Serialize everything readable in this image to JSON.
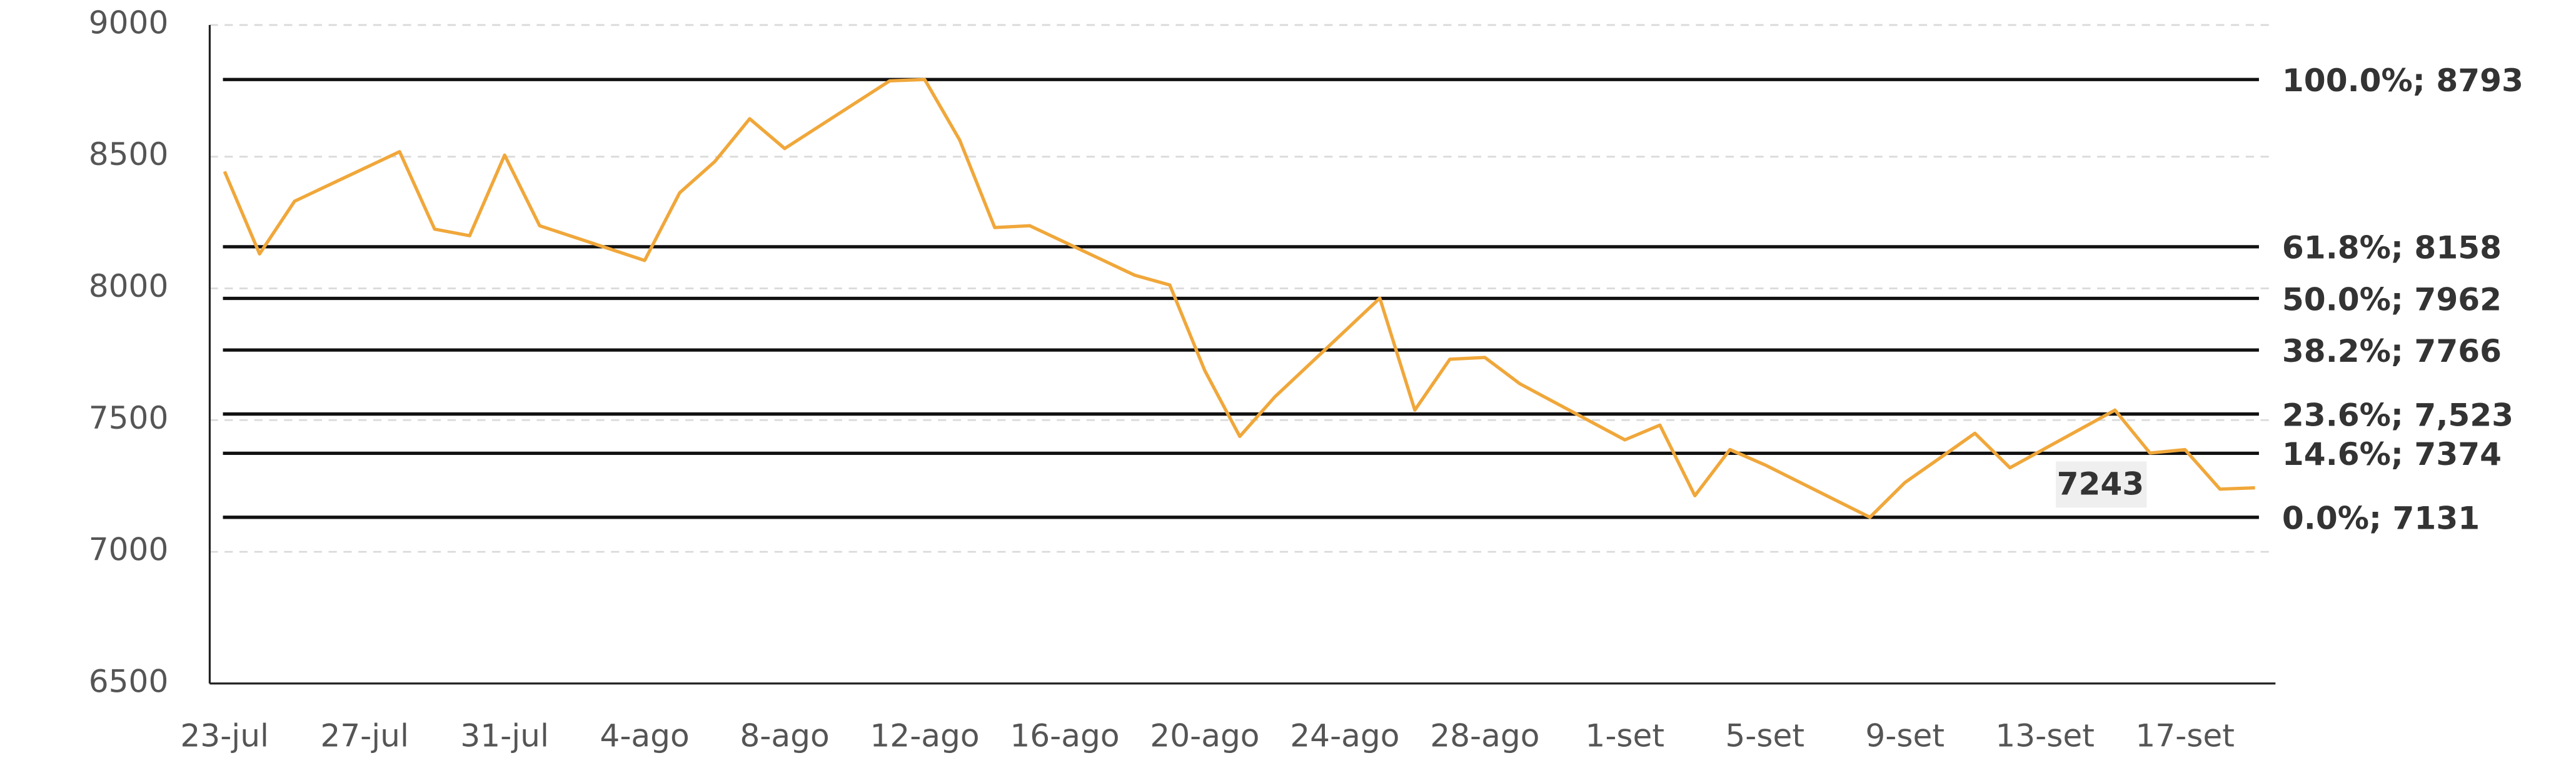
{
  "chart_data": {
    "type": "line",
    "x": [
      "23-jul",
      "24-jul",
      "25-jul",
      "28-jul",
      "29-jul",
      "30-jul",
      "31-jul",
      "1-ago",
      "4-ago",
      "5-ago",
      "6-ago",
      "7-ago",
      "8-ago",
      "11-ago",
      "12-ago",
      "13-ago",
      "14-ago",
      "15-ago",
      "18-ago",
      "19-ago",
      "20-ago",
      "21-ago",
      "22-ago",
      "25-ago",
      "26-ago",
      "27-ago",
      "28-ago",
      "29-ago",
      "1-set",
      "2-set",
      "3-set",
      "4-set",
      "5-set",
      "8-set",
      "9-set",
      "10-set",
      "11-set",
      "12-set",
      "15-set",
      "16-set",
      "17-set",
      "18-set",
      "19-set"
    ],
    "values": [
      8444,
      8131,
      8331,
      8519,
      8225,
      8200,
      8506,
      8238,
      8106,
      8363,
      8481,
      8644,
      8531,
      8788,
      8793,
      8563,
      8231,
      8238,
      8050,
      8013,
      7688,
      7438,
      7588,
      7963,
      7538,
      7731,
      7738,
      7638,
      7425,
      7481,
      7213,
      7388,
      7330,
      7131,
      7263,
      7356,
      7450,
      7319,
      7538,
      7375,
      7388,
      7238,
      7243
    ],
    "color": "#f0a73a",
    "xticks": [
      "23-jul",
      "27-jul",
      "31-jul",
      "4-ago",
      "8-ago",
      "12-ago",
      "16-ago",
      "20-ago",
      "24-ago",
      "28-ago",
      "1-set",
      "5-set",
      "9-set",
      "13-set",
      "17-set"
    ],
    "ylim": [
      6500,
      9000
    ],
    "yticks": [
      6500,
      7000,
      7500,
      8000,
      8500,
      9000
    ],
    "grid": true,
    "levels": [
      {
        "value": 8793,
        "label": "100.0%; 8793"
      },
      {
        "value": 8158,
        "label": "61.8%; 8158"
      },
      {
        "value": 7962,
        "label": "50.0%; 7962"
      },
      {
        "value": 7766,
        "label": "38.2%; 7766"
      },
      {
        "value": 7523,
        "label": "23.6%; 7,523"
      },
      {
        "value": 7374,
        "label": "14.6%; 7374"
      },
      {
        "value": 7131,
        "label": "0.0%; 7131"
      }
    ],
    "annotation": {
      "value": 7243,
      "label": "7243"
    }
  }
}
